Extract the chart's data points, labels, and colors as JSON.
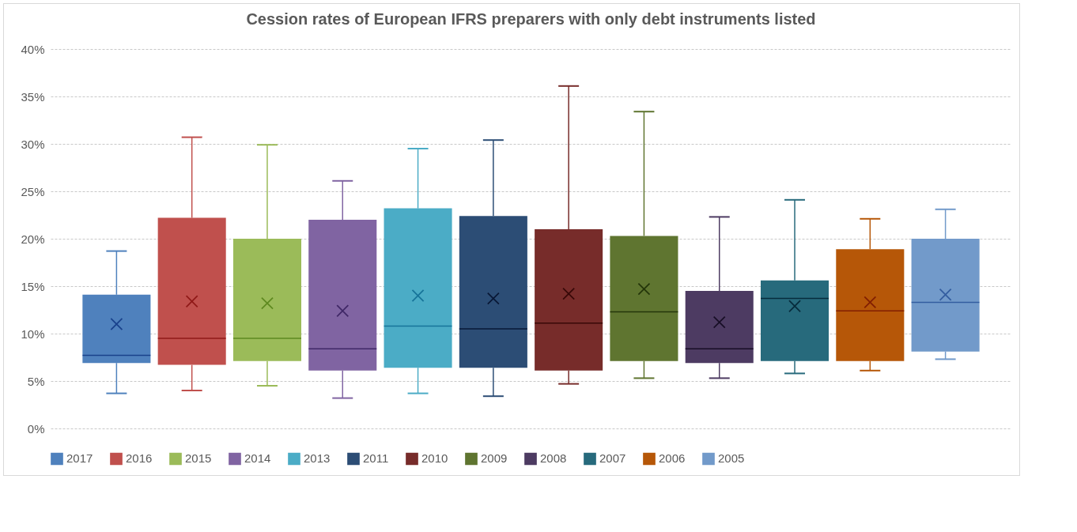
{
  "chart_data": {
    "type": "box",
    "title": "Cession rates of European IFRS preparers with only debt instruments listed",
    "categories": [
      null
    ],
    "ylim": [
      0,
      40
    ],
    "yticks": [
      {
        "value": 0,
        "label": "0%"
      },
      {
        "value": 5,
        "label": "5%"
      },
      {
        "value": 10,
        "label": "10%"
      },
      {
        "value": 15,
        "label": "15%"
      },
      {
        "value": 20,
        "label": "20%"
      },
      {
        "value": 25,
        "label": "25%"
      },
      {
        "value": 30,
        "label": "30%"
      },
      {
        "value": 35,
        "label": "35%"
      },
      {
        "value": 40,
        "label": "40%"
      }
    ],
    "grid": "y",
    "legend": "bottom",
    "tick_labels": "y",
    "marker": "cross",
    "series": [
      {
        "name": "2017",
        "color": "#4f81bd",
        "boxes": [
          {
            "low": 3.7,
            "q1": 6.9,
            "median": 7.7,
            "q3": 14.1,
            "high": 18.7,
            "mean": 11.0
          }
        ]
      },
      {
        "name": "2016",
        "color": "#c0504d",
        "boxes": [
          {
            "low": 4.0,
            "q1": 6.7,
            "median": 9.5,
            "q3": 22.2,
            "high": 30.7,
            "mean": 13.4
          }
        ]
      },
      {
        "name": "2015",
        "color": "#9bbb59",
        "boxes": [
          {
            "low": 4.5,
            "q1": 7.1,
            "median": 9.5,
            "q3": 20.0,
            "high": 29.9,
            "mean": 13.2
          }
        ]
      },
      {
        "name": "2014",
        "color": "#8064a2",
        "boxes": [
          {
            "low": 3.2,
            "q1": 6.1,
            "median": 8.4,
            "q3": 22.0,
            "high": 26.1,
            "mean": 12.4
          }
        ]
      },
      {
        "name": "2013",
        "color": "#4bacc6",
        "boxes": [
          {
            "low": 3.7,
            "q1": 6.4,
            "median": 10.8,
            "q3": 23.2,
            "high": 29.5,
            "mean": 14.0
          }
        ]
      },
      {
        "name": "2011",
        "color": "#2c4d75",
        "boxes": [
          {
            "low": 3.4,
            "q1": 6.4,
            "median": 10.5,
            "q3": 22.4,
            "high": 30.4,
            "mean": 13.7
          }
        ]
      },
      {
        "name": "2010",
        "color": "#772c2a",
        "boxes": [
          {
            "low": 4.7,
            "q1": 6.1,
            "median": 11.1,
            "q3": 21.0,
            "high": 36.1,
            "mean": 14.2
          }
        ]
      },
      {
        "name": "2009",
        "color": "#5f7530",
        "boxes": [
          {
            "low": 5.3,
            "q1": 7.1,
            "median": 12.3,
            "q3": 20.3,
            "high": 33.4,
            "mean": 14.7
          }
        ]
      },
      {
        "name": "2008",
        "color": "#4d3b62",
        "boxes": [
          {
            "low": 5.3,
            "q1": 6.9,
            "median": 8.4,
            "q3": 14.5,
            "high": 22.3,
            "mean": 11.2
          }
        ]
      },
      {
        "name": "2007",
        "color": "#276a7c",
        "boxes": [
          {
            "low": 5.8,
            "q1": 7.1,
            "median": 13.7,
            "q3": 15.6,
            "high": 24.1,
            "mean": 12.9
          }
        ]
      },
      {
        "name": "2006",
        "color": "#b65708",
        "boxes": [
          {
            "low": 6.1,
            "q1": 7.1,
            "median": 12.4,
            "q3": 18.9,
            "high": 22.1,
            "mean": 13.3
          }
        ]
      },
      {
        "name": "2005",
        "color": "#729aca",
        "boxes": [
          {
            "low": 7.3,
            "q1": 8.1,
            "median": 13.3,
            "q3": 20.0,
            "high": 23.1,
            "mean": 14.1
          }
        ]
      }
    ]
  }
}
